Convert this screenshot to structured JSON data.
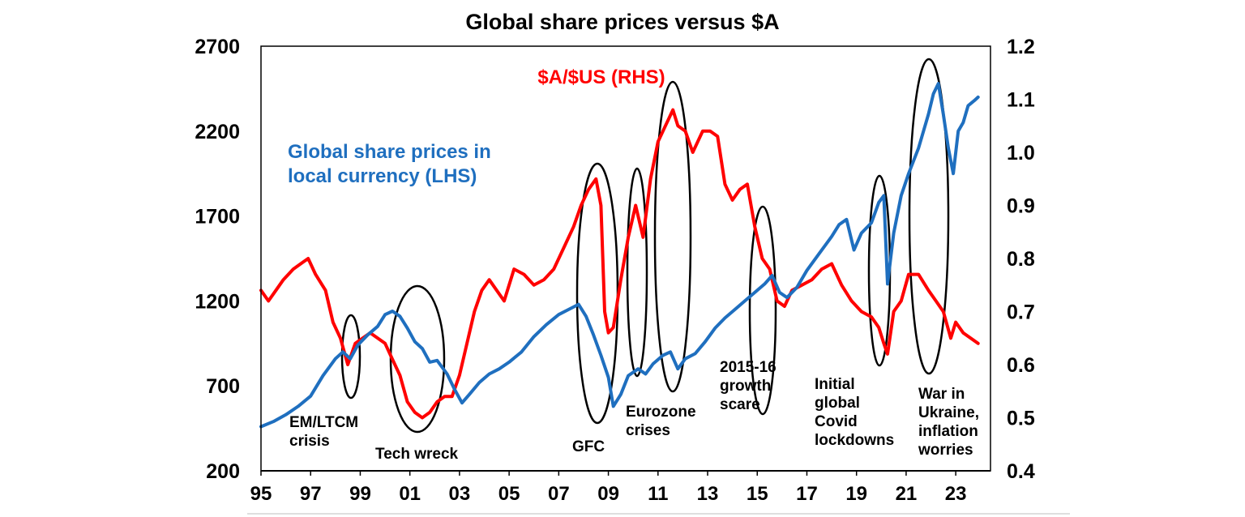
{
  "chart_data": {
    "type": "line",
    "title": "Global share prices versus $A",
    "xlabel": "",
    "ylabel": "",
    "x_range": [
      1995,
      2024.4
    ],
    "x_tick_values": [
      1995,
      1997,
      1999,
      2001,
      2003,
      2005,
      2007,
      2009,
      2011,
      2013,
      2015,
      2017,
      2019,
      2021,
      2023
    ],
    "x_tick_labels": [
      "95",
      "97",
      "99",
      "01",
      "03",
      "05",
      "07",
      "09",
      "11",
      "13",
      "15",
      "17",
      "19",
      "21",
      "23"
    ],
    "y_left": {
      "range": [
        200,
        2700
      ],
      "ticks": [
        "200",
        "700",
        "1200",
        "1700",
        "2200",
        "2700"
      ],
      "tick_values": [
        200,
        700,
        1200,
        1700,
        2200,
        2700
      ]
    },
    "y_right": {
      "range": [
        0.4,
        1.2
      ],
      "ticks": [
        "0.4",
        "0.5",
        "0.6",
        "0.7",
        "0.8",
        "0.9",
        "1.0",
        "1.1",
        "1.2"
      ],
      "tick_values": [
        0.4,
        0.5,
        0.6,
        0.7,
        0.8,
        0.9,
        1.0,
        1.1,
        1.2
      ]
    },
    "grid": false,
    "series": [
      {
        "name": "Global share prices in local currency (LHS)",
        "axis": "left",
        "color": "#1f6fbf",
        "label_lines": [
          "Global share prices in",
          "local currency (LHS)"
        ],
        "x": [
          1995.0,
          1995.5,
          1996.0,
          1996.5,
          1997.0,
          1997.5,
          1998.0,
          1998.3,
          1998.6,
          1998.9,
          1999.3,
          1999.7,
          2000.0,
          2000.3,
          2000.6,
          2000.9,
          2001.2,
          2001.5,
          2001.8,
          2002.1,
          2002.5,
          2002.8,
          2003.1,
          2003.4,
          2003.8,
          2004.2,
          2004.6,
          2005.0,
          2005.5,
          2006.0,
          2006.5,
          2007.0,
          2007.4,
          2007.8,
          2008.1,
          2008.4,
          2008.7,
          2009.0,
          2009.2,
          2009.5,
          2009.8,
          2010.2,
          2010.5,
          2010.8,
          2011.2,
          2011.5,
          2011.8,
          2012.1,
          2012.5,
          2012.9,
          2013.3,
          2013.7,
          2014.1,
          2014.5,
          2014.9,
          2015.3,
          2015.6,
          2015.9,
          2016.2,
          2016.6,
          2017.0,
          2017.5,
          2018.0,
          2018.3,
          2018.6,
          2018.9,
          2019.2,
          2019.6,
          2019.9,
          2020.1,
          2020.25,
          2020.5,
          2020.8,
          2021.1,
          2021.5,
          2021.9,
          2022.1,
          2022.3,
          2022.5,
          2022.7,
          2022.9,
          2023.1,
          2023.3,
          2023.5,
          2023.75,
          2023.9
        ],
        "values": [
          460,
          490,
          530,
          580,
          640,
          760,
          860,
          900,
          860,
          940,
          1000,
          1050,
          1120,
          1140,
          1110,
          1040,
          960,
          920,
          840,
          850,
          770,
          680,
          600,
          650,
          720,
          770,
          800,
          840,
          900,
          990,
          1060,
          1120,
          1150,
          1180,
          1110,
          1000,
          880,
          750,
          580,
          650,
          760,
          800,
          770,
          830,
          880,
          900,
          800,
          860,
          890,
          960,
          1040,
          1100,
          1150,
          1200,
          1250,
          1300,
          1350,
          1250,
          1220,
          1280,
          1380,
          1480,
          1580,
          1650,
          1680,
          1500,
          1600,
          1660,
          1780,
          1820,
          1300,
          1600,
          1820,
          1950,
          2100,
          2300,
          2420,
          2480,
          2300,
          2100,
          1950,
          2200,
          2250,
          2350,
          2380,
          2400
        ]
      },
      {
        "name": "$A/$US (RHS)",
        "axis": "right",
        "color": "#ff0000",
        "label_lines": [
          "$A/$US (RHS)"
        ],
        "x": [
          1995.0,
          1995.3,
          1995.6,
          1995.9,
          1996.3,
          1996.6,
          1996.9,
          1997.2,
          1997.6,
          1997.9,
          1998.2,
          1998.5,
          1998.8,
          1999.1,
          1999.4,
          1999.7,
          2000.0,
          2000.3,
          2000.6,
          2000.9,
          2001.2,
          2001.5,
          2001.8,
          2002.1,
          2002.4,
          2002.7,
          2003.0,
          2003.3,
          2003.6,
          2003.9,
          2004.2,
          2004.5,
          2004.8,
          2005.2,
          2005.6,
          2006.0,
          2006.4,
          2006.8,
          2007.2,
          2007.6,
          2007.9,
          2008.2,
          2008.5,
          2008.7,
          2008.85,
          2009.0,
          2009.2,
          2009.5,
          2009.8,
          2010.1,
          2010.4,
          2010.7,
          2011.0,
          2011.3,
          2011.6,
          2011.8,
          2012.1,
          2012.4,
          2012.8,
          2013.1,
          2013.4,
          2013.7,
          2014.0,
          2014.3,
          2014.6,
          2014.9,
          2015.2,
          2015.5,
          2015.8,
          2016.1,
          2016.4,
          2016.8,
          2017.2,
          2017.6,
          2018.0,
          2018.4,
          2018.8,
          2019.2,
          2019.6,
          2019.9,
          2020.1,
          2020.25,
          2020.5,
          2020.8,
          2021.1,
          2021.5,
          2021.9,
          2022.2,
          2022.5,
          2022.8,
          2023.0,
          2023.3,
          2023.6,
          2023.9
        ],
        "values": [
          0.74,
          0.72,
          0.74,
          0.76,
          0.78,
          0.79,
          0.8,
          0.77,
          0.74,
          0.68,
          0.65,
          0.6,
          0.64,
          0.65,
          0.66,
          0.65,
          0.64,
          0.61,
          0.58,
          0.53,
          0.51,
          0.5,
          0.51,
          0.53,
          0.54,
          0.54,
          0.58,
          0.64,
          0.7,
          0.74,
          0.76,
          0.74,
          0.72,
          0.78,
          0.77,
          0.75,
          0.76,
          0.78,
          0.82,
          0.86,
          0.9,
          0.93,
          0.95,
          0.9,
          0.7,
          0.66,
          0.67,
          0.76,
          0.84,
          0.9,
          0.84,
          0.95,
          1.02,
          1.05,
          1.08,
          1.05,
          1.04,
          1.0,
          1.04,
          1.04,
          1.03,
          0.94,
          0.91,
          0.93,
          0.94,
          0.86,
          0.8,
          0.78,
          0.72,
          0.71,
          0.74,
          0.75,
          0.76,
          0.78,
          0.79,
          0.75,
          0.72,
          0.7,
          0.69,
          0.67,
          0.64,
          0.62,
          0.7,
          0.72,
          0.77,
          0.77,
          0.74,
          0.72,
          0.7,
          0.65,
          0.68,
          0.66,
          0.65,
          0.64
        ]
      }
    ],
    "annotations": [
      {
        "label_lines": [
          "EM/LTCM",
          "crisis"
        ]
      },
      {
        "label_lines": [
          "Tech wreck"
        ]
      },
      {
        "label_lines": [
          "GFC"
        ]
      },
      {
        "label_lines": [
          "Eurozone",
          "crises"
        ]
      },
      {
        "label_lines": [
          "2015-16",
          "growth",
          "scare"
        ]
      },
      {
        "label_lines": [
          "Initial",
          "global",
          "Covid",
          "lockdowns"
        ]
      },
      {
        "label_lines": [
          "War in",
          "Ukraine,",
          "inflation",
          "worries"
        ]
      }
    ]
  }
}
